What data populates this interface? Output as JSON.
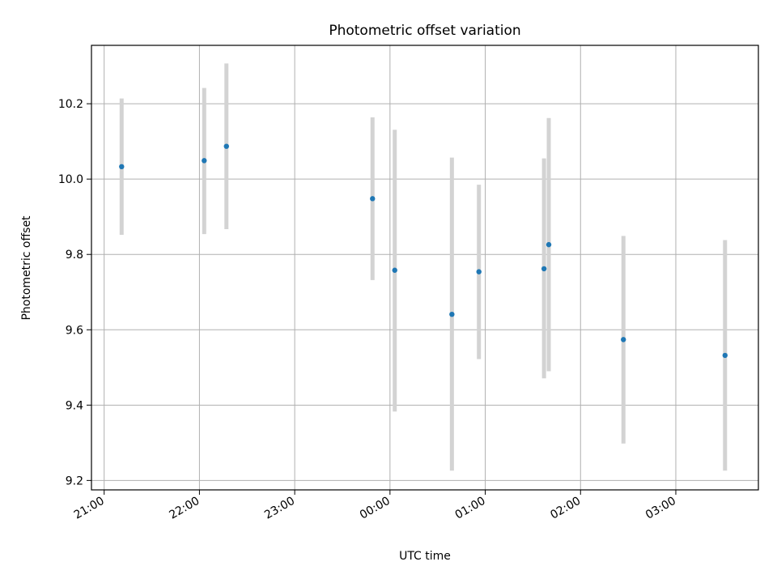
{
  "chart_data": {
    "type": "scatter",
    "title": "Photometric offset variation",
    "xlabel": "UTC time",
    "ylabel": "Photometric offset",
    "grid": true,
    "xlim": [
      "20:52",
      "03:52"
    ],
    "ylim": [
      9.175,
      10.355
    ],
    "xticks": [
      "21:00",
      "22:00",
      "23:00",
      "00:00",
      "01:00",
      "02:00",
      "03:00"
    ],
    "yticks": [
      9.2,
      9.4,
      9.6,
      9.8,
      10.0,
      10.2
    ],
    "ytick_labels": [
      "9.2",
      "9.4",
      "9.6",
      "9.8",
      "10.0",
      "10.2"
    ],
    "marker_color": "#1f77b4",
    "errorbar_color": "#d3d3d3",
    "points": [
      {
        "time": "21:11",
        "value": 10.033,
        "low": 9.852,
        "high": 10.214
      },
      {
        "time": "22:03",
        "value": 10.049,
        "low": 9.854,
        "high": 10.242
      },
      {
        "time": "22:17",
        "value": 10.087,
        "low": 9.867,
        "high": 10.307
      },
      {
        "time": "23:49",
        "value": 9.948,
        "low": 9.732,
        "high": 10.164
      },
      {
        "time": "00:03",
        "value": 9.758,
        "low": 9.383,
        "high": 10.131
      },
      {
        "time": "00:39",
        "value": 9.641,
        "low": 9.226,
        "high": 10.057
      },
      {
        "time": "00:56",
        "value": 9.754,
        "low": 9.522,
        "high": 9.985
      },
      {
        "time": "01:37",
        "value": 9.762,
        "low": 9.471,
        "high": 10.055
      },
      {
        "time": "01:40",
        "value": 9.826,
        "low": 9.49,
        "high": 10.162
      },
      {
        "time": "02:27",
        "value": 9.574,
        "low": 9.298,
        "high": 9.849
      },
      {
        "time": "03:31",
        "value": 9.532,
        "low": 9.226,
        "high": 9.838
      }
    ]
  }
}
